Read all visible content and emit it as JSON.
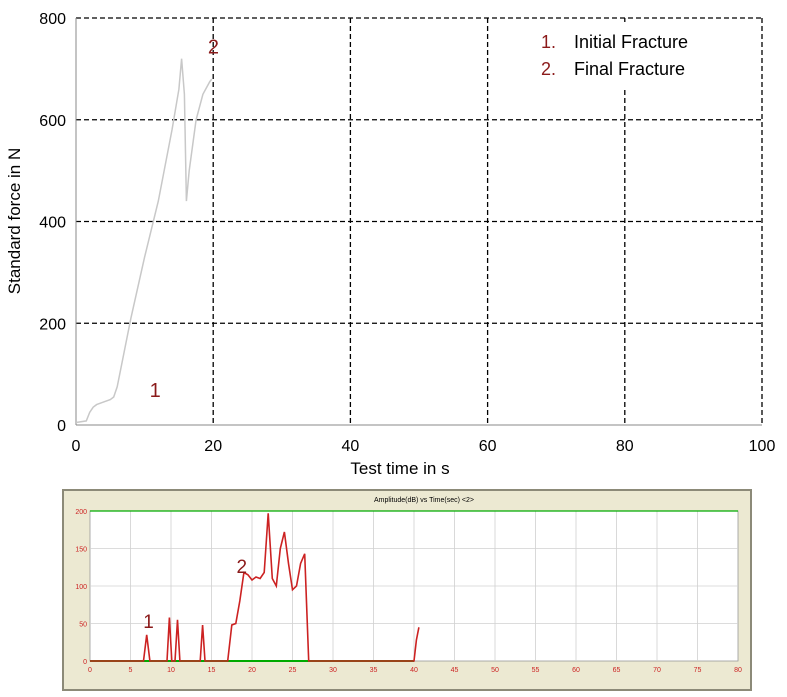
{
  "chart_data": [
    {
      "type": "line",
      "title": "",
      "xlabel": "Test time in s",
      "ylabel": "Standard force in N",
      "xlim": [
        0,
        100
      ],
      "ylim": [
        0,
        800
      ],
      "xticks": [
        "0",
        "20",
        "40",
        "60",
        "80",
        "100"
      ],
      "yticks": [
        "0",
        "200",
        "400",
        "600",
        "800"
      ],
      "grid": true,
      "legend_position": "top-right",
      "legend": [
        {
          "num": "1.",
          "label": "Initial Fracture"
        },
        {
          "num": "2.",
          "label": "Final Fracture"
        }
      ],
      "annotations": [
        {
          "text": "1",
          "x": 6,
          "y": 85
        },
        {
          "text": "2",
          "x": 14.5,
          "y": 760
        }
      ],
      "series": [
        {
          "x": [
            0,
            1.5,
            2,
            2.5,
            3,
            4,
            5,
            5.5,
            6,
            8,
            10,
            12,
            14,
            15,
            15.4,
            15.8,
            16.1,
            16.5,
            17.5,
            18.5,
            19.5,
            19.8
          ],
          "y": [
            5,
            8,
            25,
            35,
            40,
            45,
            50,
            55,
            75,
            210,
            330,
            440,
            580,
            660,
            720,
            650,
            440,
            500,
            600,
            650,
            675,
            680
          ]
        }
      ],
      "line_color": "#c8c8c8",
      "grid_color": "#000000"
    },
    {
      "type": "line",
      "title": "Amplitude(dB) vs Time(sec) <2>",
      "xlabel": "",
      "ylabel": "",
      "xlim": [
        0,
        80
      ],
      "ylim": [
        0,
        200
      ],
      "xticks": [
        "0",
        "5",
        "10",
        "15",
        "20",
        "25",
        "30",
        "35",
        "40",
        "45",
        "50",
        "55",
        "60",
        "65",
        "70",
        "75",
        "80"
      ],
      "yticks": [
        "0",
        "50",
        "100",
        "150",
        "200"
      ],
      "grid": true,
      "annotations": [
        {
          "text": "1",
          "x": 6,
          "y": 55
        },
        {
          "text": "2",
          "x": 17.5,
          "y": 128
        }
      ],
      "series": [
        {
          "x": [
            0,
            6.6,
            7,
            7.4,
            9.5,
            9.8,
            10.1,
            10.5,
            10.8,
            11.1,
            13.6,
            13.9,
            14.2,
            17,
            17.5,
            18,
            18.5,
            19,
            19.5,
            20,
            20.5,
            21,
            21.5,
            22,
            22.5,
            23,
            23.5,
            24,
            24.5,
            25,
            25.5,
            26,
            26.5,
            27,
            40,
            40.3,
            40.6
          ],
          "y": [
            0,
            0,
            35,
            0,
            0,
            58,
            0,
            0,
            55,
            0,
            0,
            48,
            0,
            0,
            48,
            50,
            80,
            118,
            115,
            108,
            112,
            110,
            118,
            197,
            110,
            100,
            150,
            172,
            130,
            95,
            100,
            130,
            143,
            0,
            0,
            28,
            45
          ]
        }
      ],
      "line_color": "#cc2222",
      "baseline_color": "#00aa00",
      "grid_color": "#d0d0d0"
    }
  ]
}
